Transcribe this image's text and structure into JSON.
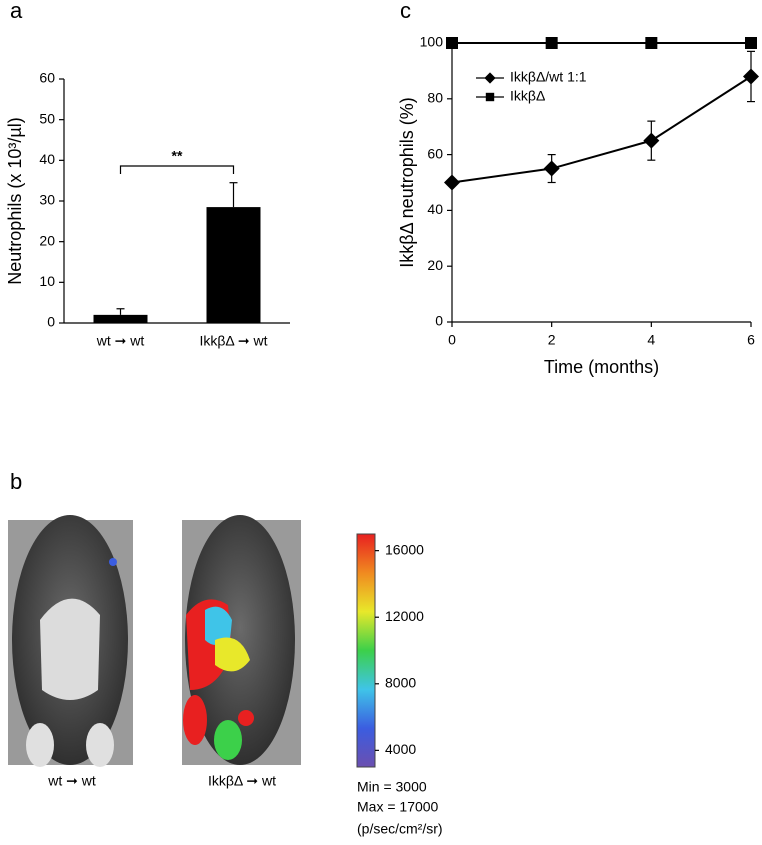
{
  "chart_data": [
    {
      "type": "bar",
      "panel": "a",
      "ylabel": "Neutrophils (x 10³/µl)",
      "categories": [
        "wt ➞ wt",
        "IkkβΔ ➞ wt"
      ],
      "values": [
        2,
        28.5
      ],
      "errors": [
        1.5,
        6
      ],
      "color": "#000000",
      "ylim": [
        0,
        60
      ],
      "yticks": [
        0,
        10,
        20,
        30,
        40,
        50,
        60
      ],
      "annotation": "**"
    },
    {
      "type": "line",
      "panel": "c",
      "xlabel": "Time (months)",
      "ylabel": "IkkβΔ neutrophils (%)",
      "x": [
        0,
        2,
        4,
        6
      ],
      "series": [
        {
          "name": "IkkβΔ/wt 1:1",
          "color": "#000000",
          "marker": "diamond",
          "values": [
            50,
            55,
            65,
            88
          ],
          "errors": [
            0,
            5,
            7,
            9
          ]
        },
        {
          "name": "IkkβΔ",
          "color": "#000000",
          "marker": "square",
          "values": [
            100,
            100,
            100,
            100
          ]
        }
      ],
      "xlim": [
        0,
        6
      ],
      "xticks": [
        0,
        2,
        4,
        6
      ],
      "ylim": [
        0,
        100
      ],
      "yticks": [
        0,
        20,
        40,
        60,
        80,
        100
      ],
      "legend": "upper left"
    },
    {
      "type": "image",
      "panel": "b",
      "captions": [
        "wt ➞ wt",
        "IkkβΔ ➞ wt"
      ],
      "colorbar": {
        "lim": [
          3000,
          17000
        ],
        "ticks": [
          4000,
          8000,
          12000,
          16000
        ],
        "colors": [
          "#6b4fb0",
          "#3b5de0",
          "#3fc4e8",
          "#3cd04a",
          "#e8e82a",
          "#f08a20",
          "#e82020"
        ]
      },
      "min_label": "Min = 3000",
      "max_label": "Max = 17000",
      "unit": "(p/sec/cm²/sr)"
    }
  ]
}
